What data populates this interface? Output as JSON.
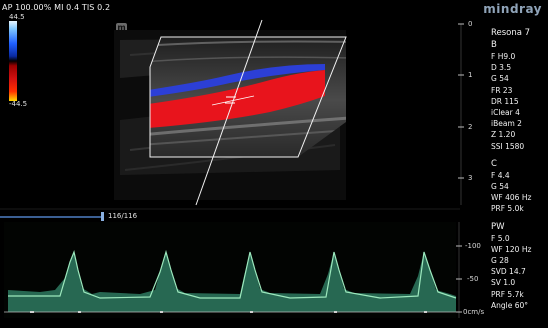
{
  "status_bar": {
    "text": "AP 100.00%  MI 0.4  TIS 0.2"
  },
  "brand": {
    "logo_text": "mindray"
  },
  "mode_badge": {
    "text": "m"
  },
  "color_scale": {
    "top": "44.5",
    "bottom": "-44.5"
  },
  "depth_scale": [
    "0",
    "1",
    "2",
    "3"
  ],
  "cine": {
    "counter": "116/116"
  },
  "velocity_scale": [
    "-100",
    "-50",
    "0cm/s"
  ],
  "params": {
    "system": "Resona 7",
    "b_header": "B",
    "b_items": [
      "F H9.0",
      "D 3.5",
      "G 54",
      "FR 23",
      "DR 115",
      "iClear 4",
      "iBeam 2",
      "Z 1.20",
      "SSI 1580"
    ],
    "c_header": "C",
    "c_items": [
      "F 4.4",
      "G 54",
      "WF 406 Hz",
      "PRF 5.0k"
    ],
    "pw_header": "PW",
    "pw_items": [
      "F 5.0",
      "WF 120 Hz",
      "G 28",
      "SVD 14.7",
      "SV 1.0",
      "PRF 5.7k",
      "Angle   60°"
    ]
  },
  "colors": {
    "flow_toward": "#e8141c",
    "flow_away": "#2c3fd6",
    "spectrum": "#6fd8a8",
    "cine_bar": "#3b5f93"
  }
}
